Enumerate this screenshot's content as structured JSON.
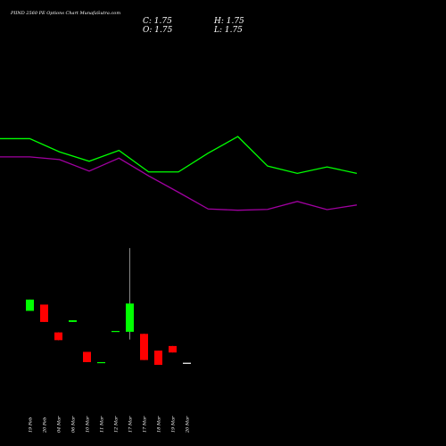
{
  "header": {
    "title": "PIIND 2560  PE Options  Chart MunafaSutra.com",
    "close": "C: 1.75",
    "open": "O: 1.75",
    "high": "H: 1.75",
    "low": "L: 1.75"
  },
  "chart_data": {
    "type": "candlestick",
    "title": "PIIND 2560  PE Options  Chart MunafaSutra.com",
    "dates": [
      "19 Feb",
      "20 Feb",
      "04 Mar",
      "06 Mar",
      "10 Mar",
      "11 Mar",
      "12 Mar",
      "17 Mar",
      "17 Mar",
      "18 Mar",
      "19 Mar",
      "20 Mar"
    ],
    "candles": [
      {
        "open": 2.0,
        "close": 7.4,
        "high": 7.4,
        "low": 2.0,
        "color": "#00ff00"
      },
      {
        "open": 5.0,
        "close": -3.3,
        "high": 5.0,
        "low": -3.3,
        "color": "#ff0000"
      },
      {
        "open": -8.3,
        "close": -12.0,
        "high": -8.3,
        "low": -12.0,
        "color": "#ff0000"
      },
      {
        "open": -3.3,
        "close": -2.5,
        "high": -2.5,
        "low": -3.3,
        "color": "#00ff00"
      },
      {
        "open": -17.6,
        "close": -22.5,
        "high": -17.6,
        "low": -22.5,
        "color": "#ff0000"
      },
      {
        "open": -22.6,
        "close": -22.5,
        "high": -22.5,
        "low": -22.6,
        "color": "#00ff00"
      },
      {
        "open": -8.0,
        "close": -7.6,
        "high": -7.6,
        "low": -8.0,
        "color": "#00ff00"
      },
      {
        "open": -8.0,
        "close": 5.5,
        "high": 32.0,
        "low": -11.7,
        "color": "#00ff00"
      },
      {
        "open": -9.0,
        "close": -21.5,
        "high": -9.0,
        "low": -21.5,
        "color": "#ff0000"
      },
      {
        "open": -17.0,
        "close": -23.8,
        "high": -17.0,
        "low": -23.8,
        "color": "#ff0000"
      },
      {
        "open": -14.8,
        "close": -17.9,
        "high": -14.8,
        "low": -17.9,
        "color": "#ff0000"
      },
      {
        "open": -22.8,
        "close": -22.8,
        "high": -22.8,
        "low": -22.8,
        "color": "#ffffff"
      }
    ],
    "lines": [
      {
        "color": "#00ff00",
        "x": [
          0,
          1,
          2,
          3,
          4,
          5,
          6,
          7,
          8,
          9,
          10,
          11,
          12
        ],
        "values": [
          84.3,
          84.3,
          78.0,
          73.5,
          78.7,
          68.4,
          68.4,
          77.4,
          85.3,
          71.2,
          67.7,
          70.8,
          67.7
        ]
      },
      {
        "color": "#a000a0",
        "x": [
          0,
          1,
          2,
          3,
          4,
          5,
          6,
          7,
          8,
          9,
          10,
          11,
          12
        ],
        "values": [
          75.6,
          75.6,
          74.3,
          68.8,
          75.0,
          66.5,
          58.7,
          50.7,
          50.1,
          50.5,
          54.3,
          50.4,
          52.6
        ]
      }
    ],
    "ylim": [
      -40,
      125
    ],
    "xlim": [
      0,
      12
    ],
    "background": "#000000"
  }
}
